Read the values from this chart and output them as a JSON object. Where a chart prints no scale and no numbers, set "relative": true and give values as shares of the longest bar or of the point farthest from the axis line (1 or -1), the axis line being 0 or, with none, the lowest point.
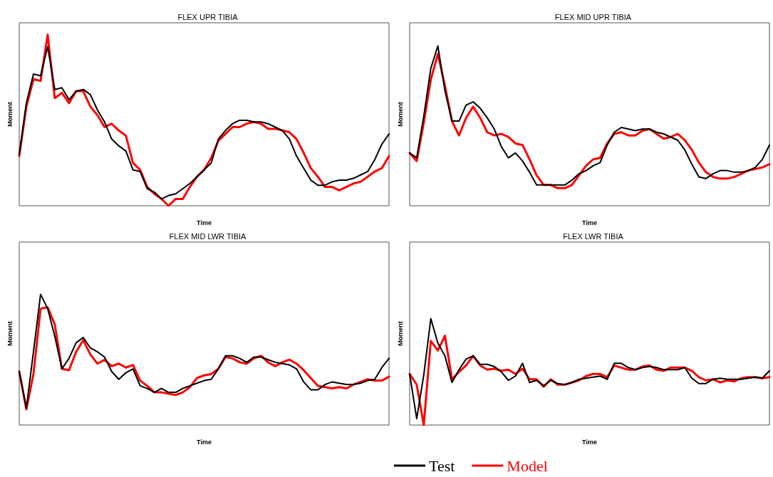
{
  "chart_data": [
    {
      "type": "line",
      "title": "FLEX UPR TIBIA",
      "xlabel": "Time",
      "ylabel": "Moment",
      "relative": true,
      "grid": false,
      "marker": "none",
      "line_style": "solid",
      "categories": [
        null,
        null,
        null,
        null,
        null,
        null,
        null,
        null,
        null,
        null,
        null,
        null,
        null,
        null,
        null,
        null,
        null,
        null,
        null,
        null,
        null,
        null,
        null,
        null,
        null,
        null,
        null,
        null,
        null,
        null,
        null,
        null,
        null,
        null,
        null,
        null,
        null,
        null,
        null,
        null,
        null,
        null,
        null,
        null,
        null,
        null,
        null,
        null,
        null,
        null,
        null,
        null,
        null
      ],
      "series": [
        {
          "color": "#000000",
          "values": [
            0.3,
            0.6,
            0.77,
            0.76,
            0.93,
            0.68,
            0.69,
            0.62,
            0.67,
            0.68,
            0.65,
            0.56,
            0.49,
            0.39,
            0.35,
            0.32,
            0.21,
            0.2,
            0.1,
            0.08,
            0.04,
            0.06,
            0.07,
            0.1,
            0.13,
            0.17,
            0.21,
            0.25,
            0.39,
            0.44,
            0.48,
            0.5,
            0.5,
            0.49,
            0.49,
            0.48,
            0.46,
            0.44,
            0.39,
            0.29,
            0.22,
            0.15,
            0.12,
            0.12,
            0.14,
            0.15,
            0.15,
            0.16,
            0.18,
            0.2,
            0.27,
            0.36,
            0.42
          ]
        },
        {
          "color": "#ff0000",
          "values": [
            0.29,
            0.58,
            0.74,
            0.73,
            1.0,
            0.63,
            0.66,
            0.6,
            0.67,
            0.67,
            0.58,
            0.53,
            0.46,
            0.48,
            0.44,
            0.41,
            0.25,
            0.21,
            0.11,
            0.07,
            0.04,
            0.0,
            0.04,
            0.04,
            0.11,
            0.17,
            0.21,
            0.28,
            0.38,
            0.42,
            0.46,
            0.46,
            0.48,
            0.49,
            0.48,
            0.45,
            0.45,
            0.44,
            0.43,
            0.39,
            0.31,
            0.22,
            0.17,
            0.11,
            0.11,
            0.09,
            0.11,
            0.13,
            0.14,
            0.17,
            0.2,
            0.22,
            0.29
          ]
        }
      ]
    },
    {
      "type": "line",
      "title": "FLEX MID UPR TIBIA",
      "xlabel": "Time",
      "ylabel": "Moment",
      "relative": true,
      "grid": false,
      "marker": "none",
      "line_style": "solid",
      "categories": [
        null,
        null,
        null,
        null,
        null,
        null,
        null,
        null,
        null,
        null,
        null,
        null,
        null,
        null,
        null,
        null,
        null,
        null,
        null,
        null,
        null,
        null,
        null,
        null,
        null,
        null,
        null,
        null,
        null,
        null,
        null,
        null,
        null,
        null,
        null,
        null,
        null,
        null,
        null,
        null,
        null,
        null,
        null,
        null,
        null,
        null,
        null,
        null,
        null,
        null,
        null,
        null
      ],
      "series": [
        {
          "color": "#000000",
          "values": [
            0.33,
            0.3,
            0.56,
            0.86,
            1.0,
            0.72,
            0.53,
            0.53,
            0.63,
            0.65,
            0.61,
            0.55,
            0.48,
            0.37,
            0.3,
            0.33,
            0.28,
            0.21,
            0.13,
            0.13,
            0.13,
            0.13,
            0.13,
            0.16,
            0.2,
            0.22,
            0.25,
            0.27,
            0.38,
            0.46,
            0.49,
            0.48,
            0.47,
            0.48,
            0.48,
            0.46,
            0.45,
            0.43,
            0.41,
            0.35,
            0.26,
            0.18,
            0.17,
            0.2,
            0.22,
            0.22,
            0.21,
            0.21,
            0.22,
            0.24,
            0.29,
            0.38
          ]
        },
        {
          "color": "#ff0000",
          "values": [
            0.33,
            0.28,
            0.52,
            0.79,
            0.95,
            0.75,
            0.53,
            0.44,
            0.55,
            0.62,
            0.55,
            0.46,
            0.44,
            0.45,
            0.43,
            0.39,
            0.38,
            0.29,
            0.19,
            0.13,
            0.13,
            0.11,
            0.11,
            0.13,
            0.19,
            0.25,
            0.29,
            0.3,
            0.39,
            0.45,
            0.46,
            0.44,
            0.44,
            0.47,
            0.48,
            0.45,
            0.42,
            0.43,
            0.45,
            0.41,
            0.35,
            0.27,
            0.21,
            0.18,
            0.17,
            0.17,
            0.18,
            0.2,
            0.22,
            0.23,
            0.24,
            0.26
          ]
        }
      ]
    },
    {
      "type": "line",
      "title": "FLEX MID LWR TIBIA",
      "xlabel": "Time",
      "ylabel": "Moment",
      "relative": true,
      "grid": false,
      "marker": "none",
      "line_style": "solid",
      "categories": [
        null,
        null,
        null,
        null,
        null,
        null,
        null,
        null,
        null,
        null,
        null,
        null,
        null,
        null,
        null,
        null,
        null,
        null,
        null,
        null,
        null,
        null,
        null,
        null,
        null,
        null,
        null,
        null,
        null,
        null,
        null,
        null,
        null,
        null,
        null,
        null,
        null,
        null,
        null,
        null,
        null,
        null,
        null,
        null,
        null,
        null,
        null,
        null,
        null,
        null,
        null,
        null,
        null
      ],
      "series": [
        {
          "color": "#000000",
          "values": [
            0.41,
            0.13,
            0.56,
            1.0,
            0.89,
            0.68,
            0.43,
            0.51,
            0.63,
            0.67,
            0.59,
            0.56,
            0.52,
            0.41,
            0.35,
            0.4,
            0.43,
            0.3,
            0.28,
            0.25,
            0.28,
            0.25,
            0.25,
            0.28,
            0.3,
            0.32,
            0.34,
            0.35,
            0.43,
            0.53,
            0.53,
            0.51,
            0.48,
            0.52,
            0.52,
            0.5,
            0.48,
            0.47,
            0.46,
            0.43,
            0.33,
            0.27,
            0.27,
            0.31,
            0.33,
            0.32,
            0.31,
            0.31,
            0.32,
            0.34,
            0.35,
            0.44,
            0.51
          ]
        },
        {
          "color": "#ff0000",
          "values": [
            0.41,
            0.12,
            0.39,
            0.89,
            0.9,
            0.77,
            0.43,
            0.42,
            0.56,
            0.65,
            0.54,
            0.47,
            0.5,
            0.45,
            0.47,
            0.44,
            0.46,
            0.34,
            0.3,
            0.25,
            0.25,
            0.24,
            0.23,
            0.25,
            0.29,
            0.36,
            0.38,
            0.39,
            0.43,
            0.52,
            0.51,
            0.48,
            0.47,
            0.51,
            0.53,
            0.48,
            0.45,
            0.48,
            0.5,
            0.47,
            0.42,
            0.36,
            0.3,
            0.29,
            0.28,
            0.29,
            0.28,
            0.31,
            0.33,
            0.35,
            0.34,
            0.34,
            0.37
          ]
        }
      ]
    },
    {
      "type": "line",
      "title": "FLEX LWR TIBIA",
      "xlabel": "Time",
      "ylabel": "Moment",
      "relative": true,
      "grid": false,
      "legend": "bottom",
      "marker": "none",
      "line_style": "solid",
      "categories": [
        null,
        null,
        null,
        null,
        null,
        null,
        null,
        null,
        null,
        null,
        null,
        null,
        null,
        null,
        null,
        null,
        null,
        null,
        null,
        null,
        null,
        null,
        null,
        null,
        null,
        null,
        null,
        null,
        null,
        null,
        null,
        null,
        null,
        null,
        null,
        null,
        null,
        null,
        null,
        null,
        null,
        null,
        null,
        null,
        null,
        null,
        null,
        null,
        null,
        null,
        null,
        null
      ],
      "series": [
        {
          "name": "Test",
          "color": "#000000",
          "values": [
            0.48,
            0.06,
            0.47,
            1.0,
            0.77,
            0.65,
            0.4,
            0.52,
            0.62,
            0.65,
            0.57,
            0.57,
            0.55,
            0.5,
            0.42,
            0.46,
            0.58,
            0.4,
            0.42,
            0.37,
            0.42,
            0.39,
            0.38,
            0.4,
            0.43,
            0.44,
            0.45,
            0.46,
            0.43,
            0.58,
            0.58,
            0.54,
            0.52,
            0.54,
            0.55,
            0.54,
            0.52,
            0.52,
            0.52,
            0.54,
            0.44,
            0.39,
            0.39,
            0.43,
            0.44,
            0.43,
            0.43,
            0.43,
            0.44,
            0.45,
            0.44,
            0.51
          ]
        },
        {
          "name": "Model",
          "color": "#ff0000",
          "values": [
            0.48,
            0.38,
            0.0,
            0.79,
            0.7,
            0.84,
            0.43,
            0.5,
            0.56,
            0.65,
            0.56,
            0.52,
            0.53,
            0.51,
            0.52,
            0.48,
            0.53,
            0.43,
            0.43,
            0.36,
            0.43,
            0.38,
            0.38,
            0.4,
            0.42,
            0.46,
            0.48,
            0.48,
            0.45,
            0.56,
            0.54,
            0.52,
            0.52,
            0.55,
            0.56,
            0.52,
            0.51,
            0.54,
            0.54,
            0.54,
            0.51,
            0.45,
            0.42,
            0.43,
            0.4,
            0.42,
            0.41,
            0.44,
            0.45,
            0.45,
            0.44,
            0.45
          ]
        }
      ]
    }
  ]
}
